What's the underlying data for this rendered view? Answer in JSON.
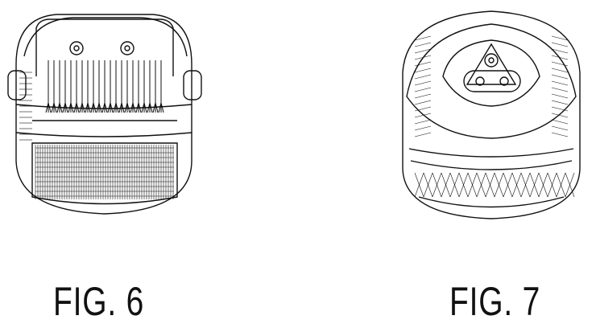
{
  "figures": [
    {
      "label": "FIG. 6"
    },
    {
      "label": "FIG. 7"
    }
  ],
  "colors": {
    "line": "#111111",
    "background": "#ffffff"
  }
}
